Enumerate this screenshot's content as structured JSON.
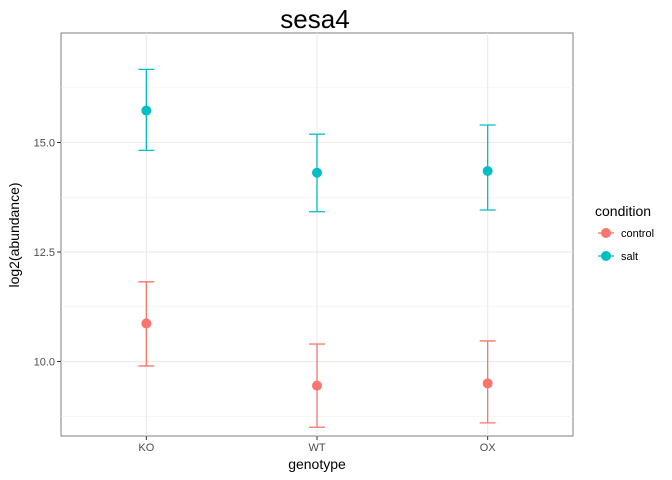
{
  "chart_data": {
    "type": "scatter",
    "title": "sesa4",
    "xlabel": "genotype",
    "ylabel": "log2(abundance)",
    "categories": [
      "KO",
      "WT",
      "OX"
    ],
    "ylim": [
      8.3,
      17.5
    ],
    "yticks": [
      10.0,
      12.5,
      15.0
    ],
    "ytick_labels": [
      "10.0",
      "12.5",
      "15.0"
    ],
    "grid": true,
    "legend": {
      "title": "condition",
      "position": "right"
    },
    "series": [
      {
        "name": "control",
        "color": "#F8766D",
        "values": [
          10.87,
          9.45,
          9.5
        ],
        "lower": [
          9.9,
          8.5,
          8.6
        ],
        "upper": [
          11.82,
          10.4,
          10.47
        ]
      },
      {
        "name": "salt",
        "color": "#00BFC4",
        "values": [
          15.73,
          14.31,
          14.35
        ],
        "lower": [
          14.82,
          13.42,
          13.46
        ],
        "upper": [
          16.67,
          15.19,
          15.4
        ]
      }
    ]
  }
}
